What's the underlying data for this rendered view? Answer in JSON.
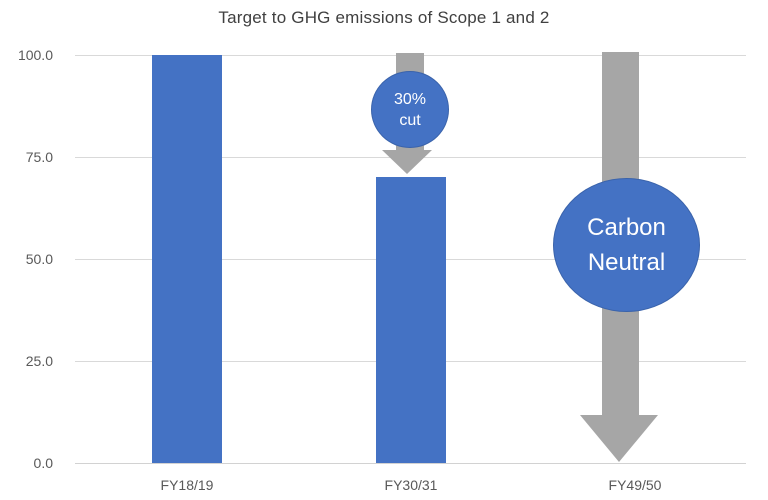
{
  "chart_data": {
    "type": "bar",
    "title": "Target to GHG emissions of Scope 1 and 2",
    "categories": [
      "FY18/19",
      "FY30/31",
      "FY49/50"
    ],
    "values": [
      100,
      70,
      0
    ],
    "ylim": [
      0,
      100
    ],
    "ytick_labels": [
      "100.0",
      "75.0",
      "50.0",
      "25.0",
      "0.0"
    ],
    "xlabel": "",
    "ylabel": "",
    "grid": true,
    "legend_position": "none",
    "bar_color": "#4472C4",
    "annotation_arrow_color": "#A6A6A6",
    "annotation_circle_color": "#4472C4",
    "annotations": [
      {
        "target_category": "FY30/31",
        "shape": "down-arrow-with-circle-label",
        "circle_text_line1": "30%",
        "circle_text_line2": "cut"
      },
      {
        "target_category": "FY49/50",
        "shape": "down-arrow-with-circle-label",
        "circle_text_line1": "Carbon",
        "circle_text_line2": "Neutral"
      }
    ]
  }
}
